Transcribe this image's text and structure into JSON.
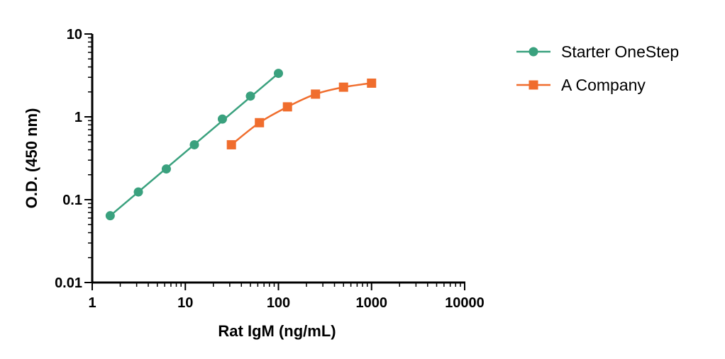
{
  "chart_data": {
    "type": "line",
    "xlabel": "Rat IgM (ng/mL)",
    "ylabel": "O.D. (450 nm)",
    "xscale": "log",
    "yscale": "log",
    "xlim": [
      1,
      10000
    ],
    "ylim": [
      0.01,
      10
    ],
    "xticks": [
      1,
      10,
      100,
      1000,
      10000
    ],
    "xtick_labels": [
      "1",
      "10",
      "100",
      "1000",
      "10000"
    ],
    "yticks": [
      0.01,
      0.1,
      1,
      10
    ],
    "ytick_labels": [
      "0.01",
      "0.1",
      "1",
      "10"
    ],
    "grid": false,
    "legend_position": "right",
    "series": [
      {
        "name": "Starter OneStep",
        "color": "#3aa17e",
        "marker": "circle",
        "x": [
          1.56,
          3.13,
          6.25,
          12.5,
          25,
          50,
          100
        ],
        "y": [
          0.064,
          0.124,
          0.235,
          0.46,
          0.94,
          1.78,
          3.35
        ]
      },
      {
        "name": "A Company",
        "color": "#f06d2d",
        "marker": "square",
        "x": [
          31.25,
          62.5,
          125,
          250,
          500,
          1000
        ],
        "y": [
          0.46,
          0.85,
          1.32,
          1.88,
          2.28,
          2.55
        ]
      }
    ]
  }
}
